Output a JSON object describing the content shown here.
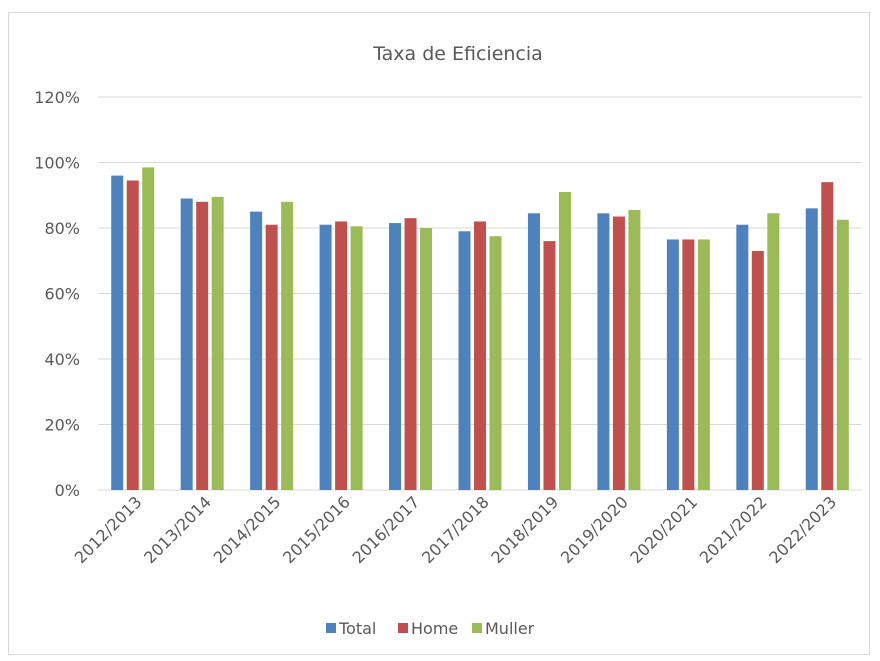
{
  "chart_data": {
    "type": "bar",
    "title": "Taxa de Eficiencia",
    "xlabel": "",
    "ylabel": "",
    "ylim": [
      0,
      120
    ],
    "yticks": [
      0,
      20,
      40,
      60,
      80,
      100,
      120
    ],
    "ytick_labels": [
      "0%",
      "20%",
      "40%",
      "60%",
      "80%",
      "100%",
      "120%"
    ],
    "grid": true,
    "legend_position": "bottom",
    "categories": [
      "2012/2013",
      "2013/2014",
      "2014/2015",
      "2015/2016",
      "2016/2017",
      "2017/2018",
      "2018/2019",
      "2019/2020",
      "2020/2021",
      "2021/2022",
      "2022/2023"
    ],
    "series": [
      {
        "name": "Total",
        "color": "#4f81bd",
        "values": [
          96,
          89,
          85,
          81,
          81.5,
          79,
          84.5,
          84.5,
          76.5,
          81,
          86
        ]
      },
      {
        "name": "Home",
        "color": "#c0504d",
        "values": [
          94.5,
          88,
          81,
          82,
          83,
          82,
          76,
          83.5,
          76.5,
          73,
          94
        ]
      },
      {
        "name": "Muller",
        "color": "#9bbb59",
        "values": [
          98.5,
          89.5,
          88,
          80.5,
          80,
          77.5,
          91,
          85.5,
          76.5,
          84.5,
          82.5
        ]
      }
    ]
  }
}
